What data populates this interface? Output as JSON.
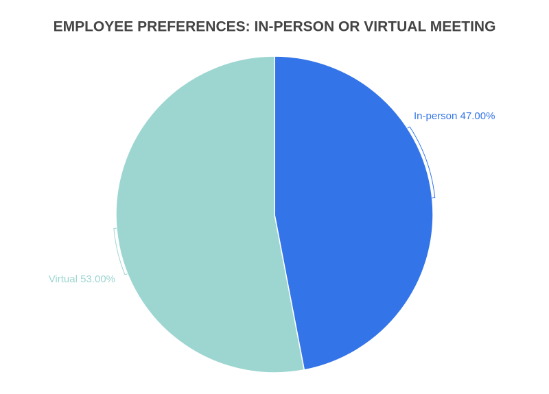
{
  "chart_data": {
    "type": "pie",
    "title": "EMPLOYEE PREFERENCES: IN-PERSON OR VIRTUAL MEETING",
    "categories": [
      "In-person",
      "Virtual"
    ],
    "values": [
      47,
      53
    ],
    "value_labels": [
      "47.00%",
      "53.00%"
    ],
    "colors": [
      "#3375e8",
      "#9dd6d0"
    ]
  }
}
